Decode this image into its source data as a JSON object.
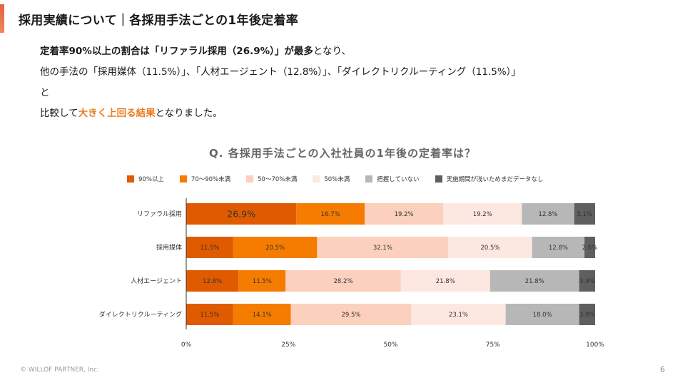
{
  "slide": {
    "title": "採用実績について｜各採用手法ごとの1年後定着率",
    "page_number": "6",
    "copyright": "© WILLOF PARTNER, Inc.",
    "accent_color": "#e5603a"
  },
  "lead": {
    "line1_bold": "定着率90%以上の割合は「リファラル採用（26.9%）」が最多",
    "line1_rest": "となり、",
    "line2": "他の手法の「採用媒体（11.5%）」、「人材エージェント（12.8%）」、「ダイレクトリクルーティング（11.5%）」",
    "line3": "と",
    "line4_pre": "比較して",
    "line4_highlight": "大きく上回る結果",
    "line4_post": "となりました。",
    "highlight_color": "#e87b20"
  },
  "chart_data": {
    "type": "bar",
    "orientation": "horizontal",
    "stacked": true,
    "title": "Q. 各採用手法ごとの入社社員の1年後の定着率は？",
    "categories": [
      "リファラル採用",
      "採用媒体",
      "人材エージェント",
      "ダイレクトリクルーティング"
    ],
    "series": [
      {
        "name": "90%以上",
        "color": "#e05a00",
        "values": [
          26.9,
          11.5,
          12.8,
          11.5
        ],
        "labels": [
          "26.9%",
          "11.5%",
          "12.8%",
          "11.5%"
        ]
      },
      {
        "name": "70～90%未満",
        "color": "#f57c00",
        "values": [
          16.7,
          20.5,
          11.5,
          14.1
        ],
        "labels": [
          "16.7%",
          "20.5%",
          "11.5%",
          "14.1%"
        ]
      },
      {
        "name": "50～70%未満",
        "color": "#fbd0bc",
        "values": [
          19.2,
          32.1,
          28.2,
          29.5
        ],
        "labels": [
          "19.2%",
          "32.1%",
          "28.2%",
          "29.5%"
        ]
      },
      {
        "name": "50%未満",
        "color": "#fde8e1",
        "values": [
          19.2,
          20.5,
          21.8,
          23.1
        ],
        "labels": [
          "19.2%",
          "20.5%",
          "21.8%",
          "23.1%"
        ]
      },
      {
        "name": "把握していない",
        "color": "#b7b7b7",
        "values": [
          12.8,
          12.8,
          21.8,
          18.0
        ],
        "labels": [
          "12.8%",
          "12.8%",
          "21.8%",
          "18.0%"
        ]
      },
      {
        "name": "実施期間が浅いためまだデータなし",
        "color": "#5f5f5f",
        "values": [
          5.1,
          2.6,
          3.9,
          3.9
        ],
        "labels": [
          "5.1%",
          "2.6%",
          "3.9%",
          "3.9%"
        ]
      }
    ],
    "xlim": [
      0,
      100
    ],
    "x_ticks": [
      0,
      25,
      50,
      75,
      100
    ],
    "x_tick_labels": [
      "0%",
      "25%",
      "50%",
      "75%",
      "100%"
    ],
    "legend_position": "top",
    "grid": false
  }
}
